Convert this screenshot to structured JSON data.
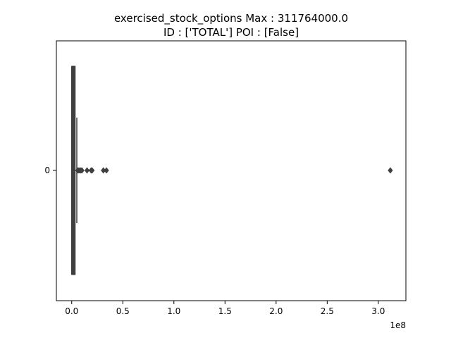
{
  "chart_data": {
    "type": "boxplot",
    "orientation": "horizontal",
    "title_lines": [
      "exercised_stock_options  Max : 311764000.0",
      "ID : ['TOTAL']  POI : [False]"
    ],
    "categories": [
      "0"
    ],
    "x_ticks": [
      0.0,
      0.5,
      1.0,
      1.5,
      2.0,
      2.5,
      3.0
    ],
    "x_tick_labels": [
      "0.0",
      "0.5",
      "1.0",
      "1.5",
      "2.0",
      "2.5",
      "3.0"
    ],
    "x_multiplier_label": "1e8",
    "xlim": [
      -0.15,
      3.27
    ],
    "box": {
      "min": 0.0,
      "q1": 0.0,
      "median": 0.0,
      "q3": 0.02,
      "max": 0.05
    },
    "outliers": [
      0.06,
      0.07,
      0.08,
      0.09,
      0.1,
      0.15,
      0.19,
      0.2,
      0.31,
      0.34,
      3.11764
    ]
  },
  "colors": {
    "box": "#3f3f3f",
    "axis": "#000000"
  }
}
